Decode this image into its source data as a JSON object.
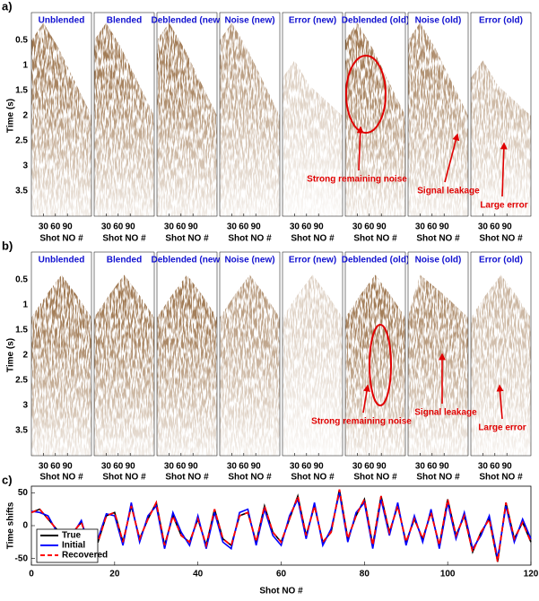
{
  "panels": [
    {
      "label": "a)",
      "titles": [
        "Unblended",
        "Blended",
        "Deblended (new)",
        "Noise (new)",
        "Error (new)",
        "Deblended (old)",
        "Noise (old)",
        "Error (old)"
      ],
      "ylabel": "Time (s)",
      "ylim": [
        0,
        4
      ],
      "yticks": [
        0.5,
        1,
        1.5,
        2,
        2.5,
        3,
        3.5
      ],
      "xlim": [
        0,
        150
      ],
      "xticks": [
        30,
        60,
        90
      ],
      "xlabel": "Shot NO #",
      "annotations": [
        "Strong remaining noise",
        "Signal leakage",
        "Large error"
      ]
    },
    {
      "label": "b)",
      "titles": [
        "Unblended",
        "Blended",
        "Deblended (new)",
        "Noise (new)",
        "Error (new)",
        "Deblended (old)",
        "Noise (old)",
        "Error (old)"
      ],
      "ylabel": "Time (s)",
      "ylim": [
        0,
        4
      ],
      "yticks": [
        0.5,
        1,
        1.5,
        2,
        2.5,
        3,
        3.5
      ],
      "xlim": [
        0,
        150
      ],
      "xticks": [
        30,
        60,
        90
      ],
      "xlabel": "Shot NO #",
      "annotations": [
        "Strong remaining noise",
        "Signal leakage",
        "Large error"
      ]
    }
  ],
  "chart_data": {
    "type": "line",
    "label": "c)",
    "xlabel": "Shot NO #",
    "ylabel": "Time shifts",
    "x": [
      0,
      2,
      4,
      6,
      8,
      10,
      12,
      14,
      16,
      18,
      20,
      22,
      24,
      26,
      28,
      30,
      32,
      34,
      36,
      38,
      40,
      42,
      44,
      46,
      48,
      50,
      52,
      54,
      56,
      58,
      60,
      62,
      64,
      66,
      68,
      70,
      72,
      74,
      76,
      78,
      80,
      82,
      84,
      86,
      88,
      90,
      92,
      94,
      96,
      98,
      100,
      102,
      104,
      106,
      108,
      110,
      112,
      114,
      116,
      118,
      120
    ],
    "xlim": [
      0,
      120
    ],
    "xticks": [
      0,
      20,
      40,
      60,
      80,
      100,
      120
    ],
    "ylim": [
      -60,
      60
    ],
    "yticks": [
      -50,
      0,
      50
    ],
    "legend": "lower left",
    "series": [
      {
        "name": "True",
        "color": "#000000",
        "linestyle": "solid",
        "values": [
          20,
          25,
          10,
          -5,
          -20,
          -10,
          5,
          -30,
          -25,
          15,
          20,
          -25,
          30,
          -20,
          10,
          35,
          -30,
          15,
          -15,
          -25,
          10,
          -30,
          25,
          -20,
          -30,
          15,
          20,
          -25,
          30,
          -10,
          -25,
          10,
          45,
          -15,
          30,
          -25,
          -10,
          55,
          -20,
          15,
          40,
          -30,
          45,
          -10,
          30,
          -25,
          10,
          -20,
          20,
          -30,
          40,
          -15,
          15,
          -40,
          -10,
          10,
          -55,
          35,
          -20,
          5,
          -25
        ]
      },
      {
        "name": "Initial",
        "color": "#0000ff",
        "linestyle": "solid",
        "values": [
          22,
          20,
          15,
          -8,
          -15,
          -12,
          8,
          -35,
          -20,
          18,
          15,
          -30,
          35,
          -25,
          15,
          30,
          -35,
          20,
          -10,
          -30,
          15,
          -35,
          20,
          -25,
          -35,
          20,
          25,
          -30,
          25,
          -15,
          -30,
          15,
          40,
          -20,
          35,
          -30,
          -5,
          50,
          -25,
          20,
          35,
          -35,
          40,
          -15,
          35,
          -30,
          15,
          -25,
          25,
          -35,
          35,
          -20,
          20,
          -35,
          -15,
          15,
          -50,
          30,
          -25,
          10,
          -20
        ]
      },
      {
        "name": "Recovered",
        "color": "#ff0000",
        "linestyle": "dashed",
        "values": [
          20,
          25,
          10,
          -5,
          -20,
          -10,
          5,
          -30,
          -25,
          15,
          20,
          -25,
          30,
          -20,
          10,
          35,
          -30,
          15,
          -15,
          -25,
          10,
          -30,
          25,
          -20,
          -30,
          15,
          20,
          -25,
          30,
          -10,
          -25,
          10,
          45,
          -15,
          30,
          -25,
          -10,
          55,
          -20,
          15,
          40,
          -30,
          45,
          -10,
          30,
          -25,
          10,
          -20,
          20,
          -30,
          40,
          -15,
          15,
          -40,
          -10,
          10,
          -55,
          35,
          -20,
          5,
          -25
        ]
      }
    ]
  }
}
